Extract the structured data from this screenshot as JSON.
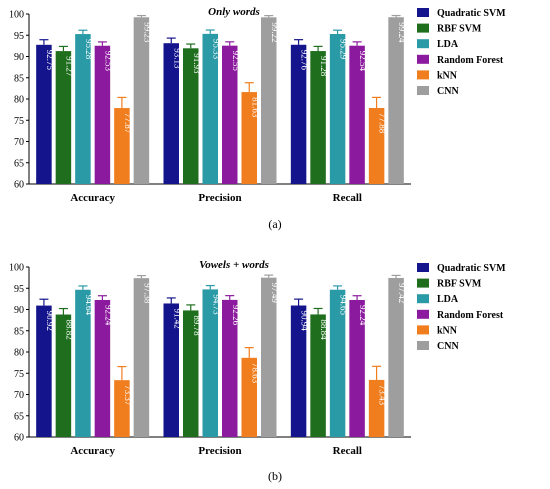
{
  "figure": {
    "panels": [
      {
        "caption": "(a)"
      },
      {
        "caption": "(b)"
      }
    ],
    "colors": {
      "Quadratic SVM": "#14148c",
      "RBF SVM": "#1e6e1e",
      "LDA": "#2a9aa6",
      "Random Forest": "#8c1a9e",
      "kNN": "#f07d1e",
      "CNN": "#9e9e9e"
    }
  },
  "chart_data": [
    {
      "type": "bar",
      "title": "Only words",
      "categories": [
        "Accuracy",
        "Precision",
        "Recall"
      ],
      "ylim": [
        60,
        100
      ],
      "yticks": [
        60,
        65,
        70,
        75,
        80,
        85,
        90,
        95,
        100
      ],
      "grid": false,
      "legend_position": "right",
      "error_bars": true,
      "series": [
        {
          "name": "Quadratic SVM",
          "values": [
            92.75,
            93.13,
            92.76
          ],
          "labels": [
            "92.75",
            "93.13",
            "92.76"
          ],
          "error": [
            1.2,
            1.2,
            1.2
          ]
        },
        {
          "name": "RBF SVM",
          "values": [
            91.27,
            91.93,
            91.28
          ],
          "labels": [
            "91.27",
            "91.93",
            "91.28"
          ],
          "error": [
            1.1,
            1.0,
            1.1
          ]
        },
        {
          "name": "LDA",
          "values": [
            95.28,
            95.33,
            95.29
          ],
          "labels": [
            "95.28",
            "95.33",
            "95.29"
          ],
          "error": [
            0.9,
            0.9,
            0.9
          ]
        },
        {
          "name": "Random Forest",
          "values": [
            92.53,
            92.55,
            92.54
          ],
          "labels": [
            "92.53",
            "92.55",
            "92.54"
          ],
          "error": [
            0.9,
            0.9,
            0.9
          ]
        },
        {
          "name": "kNN",
          "values": [
            77.87,
            81.63,
            77.88
          ],
          "labels": [
            "77.87",
            "81.63",
            "77.88"
          ],
          "error": [
            2.5,
            2.2,
            2.5
          ]
        },
        {
          "name": "CNN",
          "values": [
            99.23,
            99.22,
            99.24
          ],
          "labels": [
            "99.23",
            "99.22",
            "99.24"
          ],
          "error": [
            0.4,
            0.4,
            0.4
          ]
        }
      ]
    },
    {
      "type": "bar",
      "title": "Vowels + words",
      "categories": [
        "Accuracy",
        "Precision",
        "Recall"
      ],
      "ylim": [
        60,
        100
      ],
      "yticks": [
        60,
        65,
        70,
        75,
        80,
        85,
        90,
        95,
        100
      ],
      "grid": false,
      "legend_position": "right",
      "error_bars": true,
      "series": [
        {
          "name": "Quadratic SVM",
          "values": [
            90.92,
            91.42,
            90.94
          ],
          "labels": [
            "90.92",
            "91.42",
            "90.94"
          ],
          "error": [
            1.5,
            1.3,
            1.5
          ]
        },
        {
          "name": "RBF SVM",
          "values": [
            88.82,
            89.78,
            88.84
          ],
          "labels": [
            "88.82",
            "89.78",
            "88.84"
          ],
          "error": [
            1.4,
            1.3,
            1.4
          ]
        },
        {
          "name": "LDA",
          "values": [
            94.64,
            94.73,
            94.65
          ],
          "labels": [
            "94.64",
            "94.73",
            "94.65"
          ],
          "error": [
            0.9,
            0.9,
            0.9
          ]
        },
        {
          "name": "Random Forest",
          "values": [
            92.24,
            92.26,
            92.24
          ],
          "labels": [
            "92.24",
            "92.26",
            "92.24"
          ],
          "error": [
            1.0,
            1.0,
            1.0
          ]
        },
        {
          "name": "kNN",
          "values": [
            73.37,
            78.63,
            73.43
          ],
          "labels": [
            "73.37",
            "78.63",
            "73.43"
          ],
          "error": [
            3.2,
            2.4,
            3.2
          ]
        },
        {
          "name": "CNN",
          "values": [
            97.38,
            97.49,
            97.42
          ],
          "labels": [
            "97.38",
            "97.49",
            "97.42"
          ],
          "error": [
            0.6,
            0.6,
            0.6
          ]
        }
      ]
    }
  ]
}
